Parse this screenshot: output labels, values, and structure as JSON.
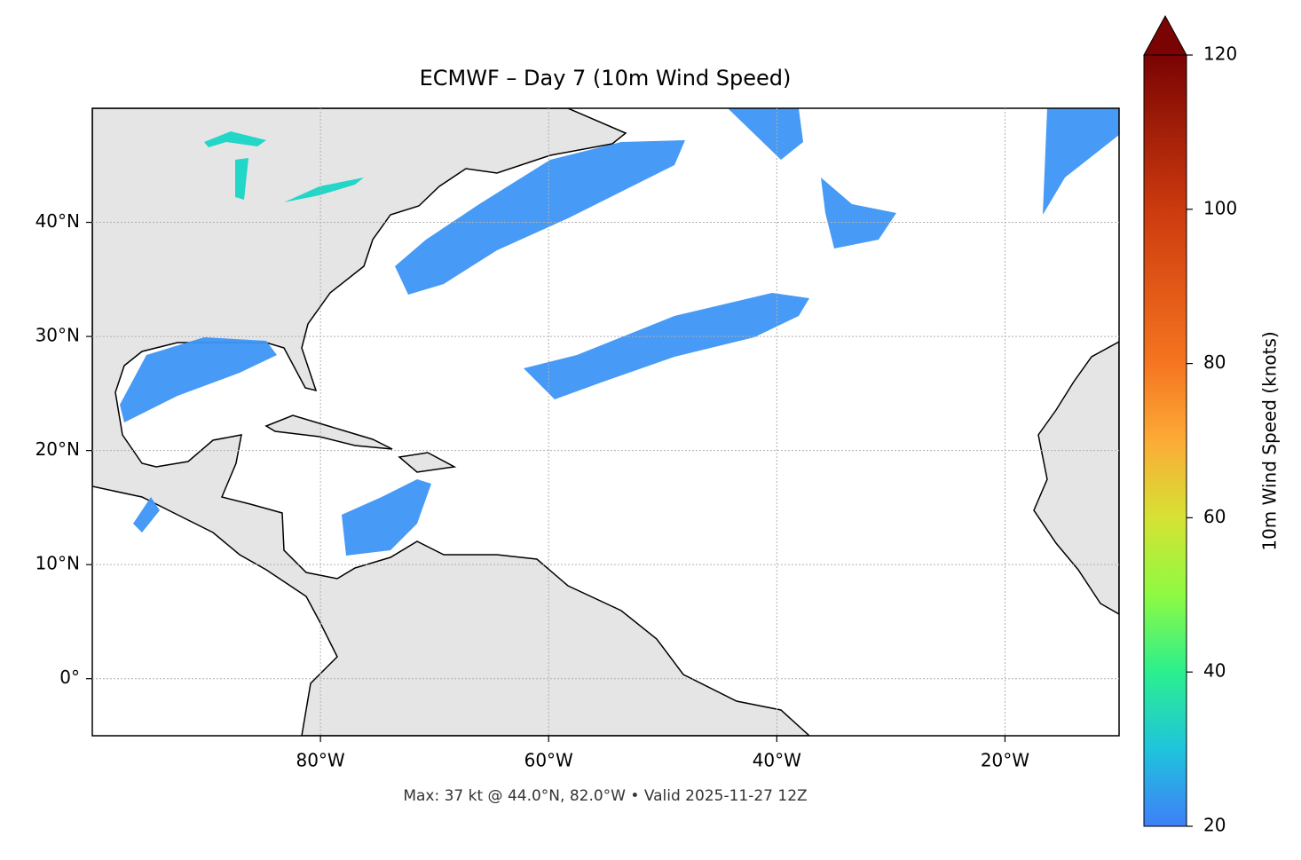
{
  "chart_data": {
    "type": "map",
    "title": "ECMWF – Day 7 (10m Wind Speed)",
    "footer": "Max: 37 kt @ 44.0°N, 82.0°W • Valid 2025-11-27 12Z",
    "xlim": [
      -100,
      -10
    ],
    "ylim": [
      -5,
      50
    ],
    "xticks": [
      {
        "value": -80,
        "label": "80°W"
      },
      {
        "value": -60,
        "label": "60°W"
      },
      {
        "value": -40,
        "label": "40°W"
      },
      {
        "value": -20,
        "label": "20°W"
      }
    ],
    "yticks": [
      {
        "value": 0,
        "label": "0°"
      },
      {
        "value": 10,
        "label": "10°N"
      },
      {
        "value": 20,
        "label": "20°N"
      },
      {
        "value": 30,
        "label": "30°N"
      },
      {
        "value": 40,
        "label": "40°N"
      }
    ],
    "grid": true,
    "colorbar": {
      "label": "10m Wind Speed (knots)",
      "lim": [
        20,
        120
      ],
      "ticks": [
        20,
        40,
        60,
        80,
        100,
        120
      ],
      "extend": "max"
    }
  }
}
